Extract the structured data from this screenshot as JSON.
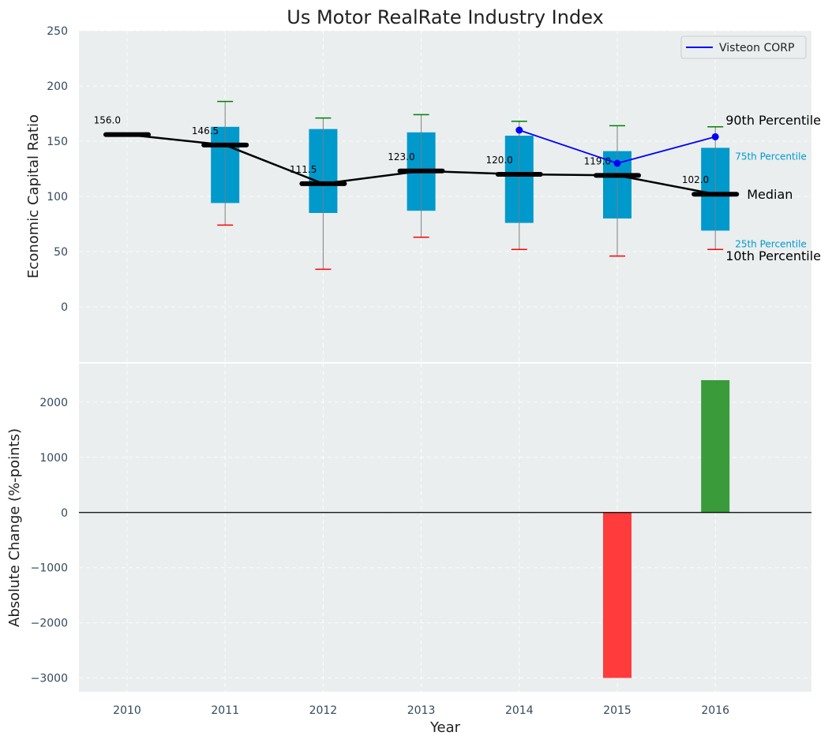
{
  "chart_data": [
    {
      "type": "box",
      "title": "Us Motor RealRate Industry Index",
      "ylabel": "Economic Capital Ratio",
      "ylim": [
        -50,
        250
      ],
      "yticks": [
        0,
        50,
        100,
        150,
        200,
        250
      ],
      "categories": [
        "2010",
        "2011",
        "2012",
        "2013",
        "2014",
        "2015",
        "2016"
      ],
      "boxes": [
        {
          "x": "2010",
          "median": 156.0,
          "median_label": "156.0"
        },
        {
          "x": "2011",
          "p10": 74,
          "p25": 94,
          "median": 146.5,
          "p75": 163,
          "p90": 186,
          "median_label": "146.5"
        },
        {
          "x": "2012",
          "p10": 34,
          "p25": 85,
          "median": 111.5,
          "p75": 161,
          "p90": 171,
          "median_label": "111.5"
        },
        {
          "x": "2013",
          "p10": 63,
          "p25": 87,
          "median": 123.0,
          "p75": 158,
          "p90": 174,
          "median_label": "123.0"
        },
        {
          "x": "2014",
          "p10": 52,
          "p25": 76,
          "median": 120.0,
          "p75": 155,
          "p90": 168,
          "median_label": "120.0"
        },
        {
          "x": "2015",
          "p10": 46,
          "p25": 80,
          "median": 119.0,
          "p75": 141,
          "p90": 164,
          "median_label": "119.0"
        },
        {
          "x": "2016",
          "p10": 52,
          "p25": 69,
          "median": 102.0,
          "p75": 144,
          "p90": 163,
          "median_label": "102.0"
        }
      ],
      "series": [
        {
          "name": "Visteon CORP",
          "x": [
            "2014",
            "2015",
            "2016"
          ],
          "values": [
            160,
            130,
            154
          ],
          "color": "#0000ff"
        }
      ],
      "annotations": {
        "p90": "90th Percentile",
        "p75": "75th Percentile",
        "median": "Median",
        "p25": "25th Percentile",
        "p10": "10th Percentile"
      },
      "legend_position": "top-right",
      "grid": true,
      "colors": {
        "box": "#0099cc",
        "median": "#000000",
        "p90_cap": "#008000",
        "p10_cap": "#ff0000",
        "whisker": "#808080",
        "background": "#eaeeef"
      }
    },
    {
      "type": "bar",
      "xlabel": "Year",
      "ylabel": "Absolute Change (%-points)",
      "ylim": [
        -3250,
        2700
      ],
      "yticks": [
        -3000,
        -2000,
        -1000,
        0,
        1000,
        2000
      ],
      "ytick_labels": [
        "−3000",
        "−2000",
        "−1000",
        "0",
        "1000",
        "2000"
      ],
      "categories": [
        "2010",
        "2011",
        "2012",
        "2013",
        "2014",
        "2015",
        "2016"
      ],
      "values": [
        0,
        0,
        0,
        0,
        0,
        -3000,
        2400
      ],
      "grid": true,
      "colors": {
        "positive": "#3a9b3a",
        "negative": "#ff3b3b",
        "background": "#eaeeef"
      }
    }
  ]
}
